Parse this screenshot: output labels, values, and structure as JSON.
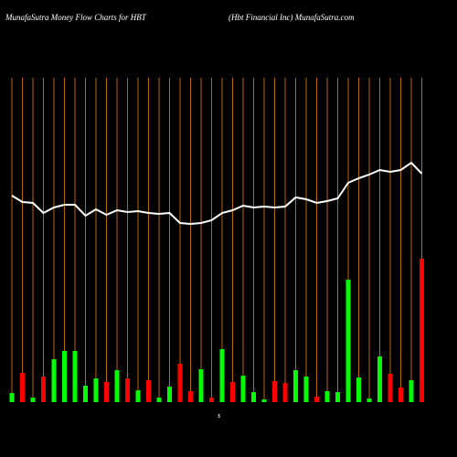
{
  "chart_data": {
    "type": "bar",
    "title": "MunafaSutra  Money Flow  Charts for HBT",
    "subtitle": "(Hbt Financial Inc) MunafaSutra.com",
    "axis_symbol": "$",
    "categories": [
      null,
      null,
      null,
      null,
      null,
      null,
      null,
      null,
      null,
      null,
      null,
      null,
      null,
      null,
      null,
      null,
      null,
      null,
      null,
      null,
      null,
      null,
      null,
      null,
      null,
      null,
      null,
      null,
      null,
      null,
      null,
      null,
      null,
      null,
      null,
      null,
      null,
      null,
      null,
      null
    ],
    "values": [
      10,
      32,
      5,
      28,
      47,
      56,
      56,
      18,
      26,
      22,
      35,
      26,
      13,
      24,
      5,
      17,
      42,
      12,
      36,
      5,
      58,
      22,
      29,
      11,
      3,
      23,
      21,
      35,
      28,
      6,
      12,
      11,
      134,
      27,
      4,
      50,
      31,
      16,
      24,
      157
    ],
    "colors": [
      "#00ff00",
      "#ff0000",
      "#00ff00",
      "#ff0000",
      "#00ff00",
      "#00ff00",
      "#00ff00",
      "#00ff00",
      "#00ff00",
      "#ff0000",
      "#00ff00",
      "#ff0000",
      "#00ff00",
      "#ff0000",
      "#00ff00",
      "#00ff00",
      "#ff0000",
      "#ff0000",
      "#00ff00",
      "#ff0000",
      "#00ff00",
      "#ff0000",
      "#00ff00",
      "#00ff00",
      "#00ff00",
      "#ff0000",
      "#ff0000",
      "#00ff00",
      "#00ff00",
      "#ff0000",
      "#00ff00",
      "#00ff00",
      "#00ff00",
      "#00ff00",
      "#00ff00",
      "#00ff00",
      "#ff0000",
      "#ff0000",
      "#00ff00",
      "#ff0000"
    ],
    "line_values": [
      226,
      219,
      218,
      207,
      213,
      216,
      216,
      204,
      211,
      205,
      210,
      208,
      209,
      207,
      206,
      207,
      196,
      195,
      196,
      199,
      207,
      210,
      215,
      213,
      214,
      213,
      214,
      224,
      222,
      218,
      220,
      223,
      240,
      245,
      249,
      254,
      252,
      254,
      262,
      250
    ],
    "line_color": "#ffffff",
    "grid_color": "#b8660b",
    "ylim": [
      0,
      360
    ]
  }
}
